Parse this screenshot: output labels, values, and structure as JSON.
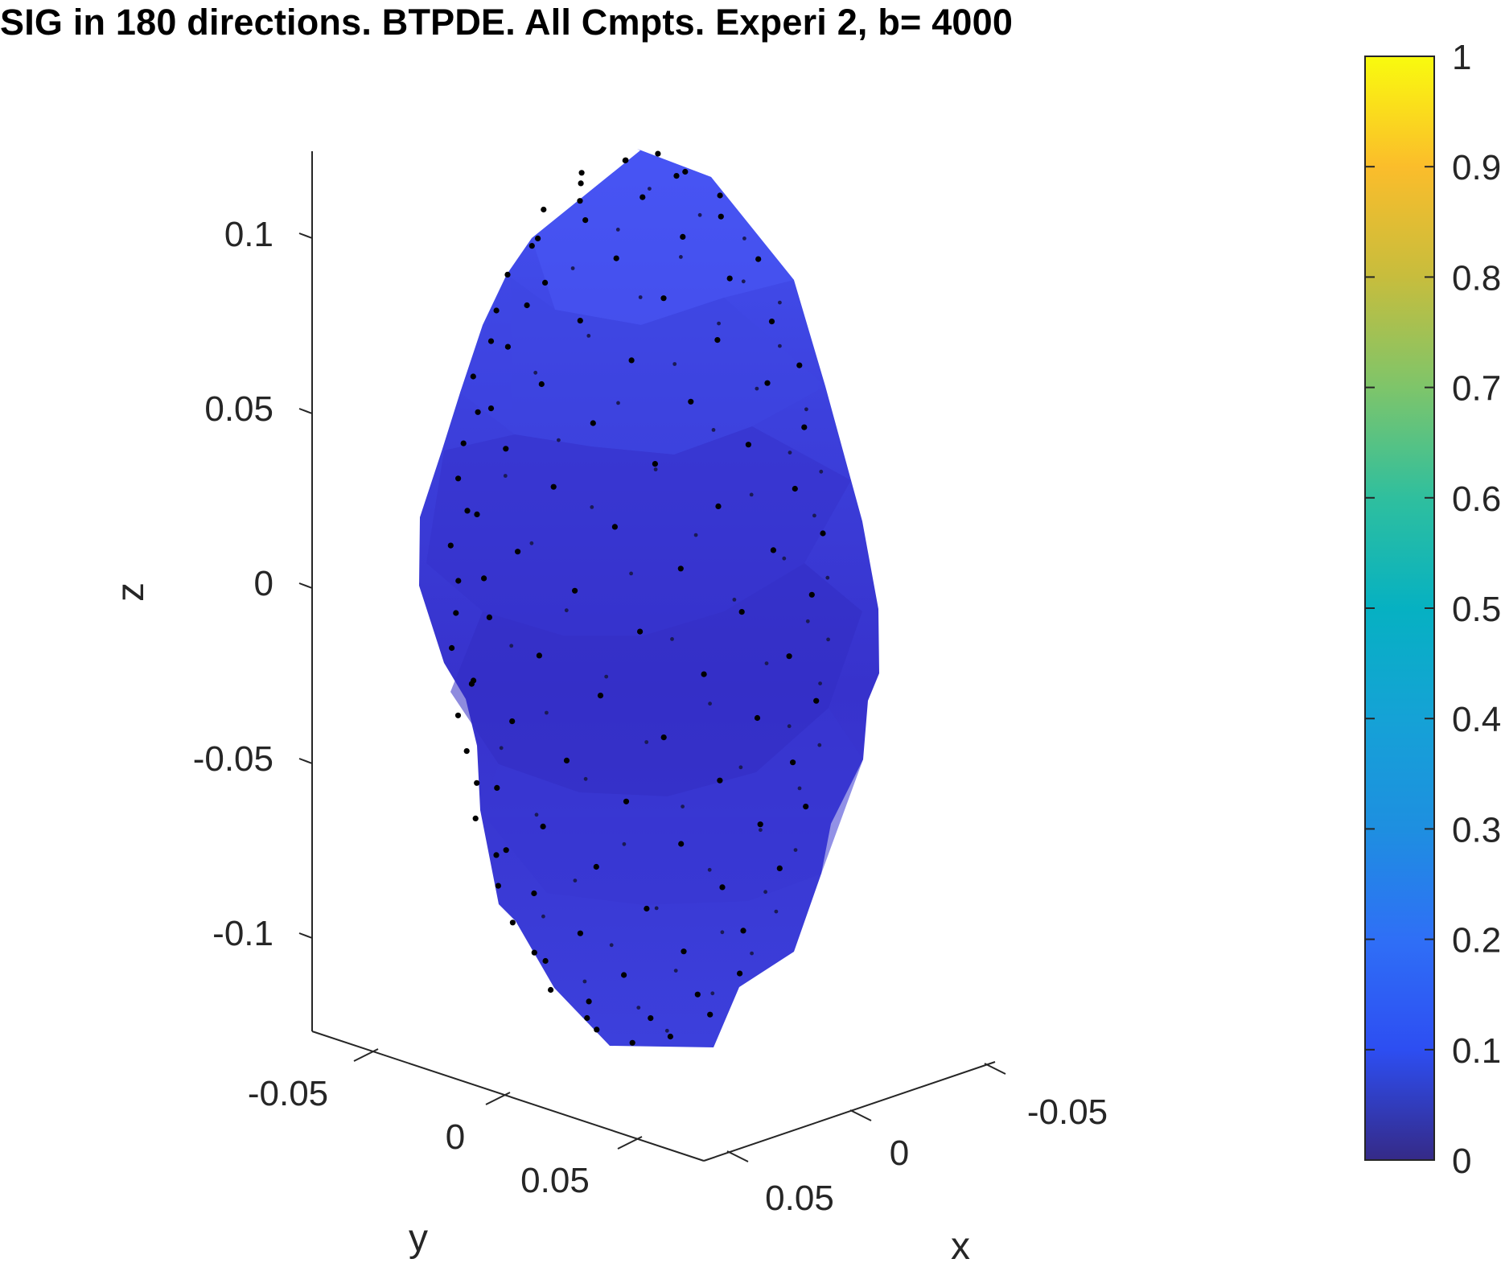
{
  "chart_data": {
    "type": "surface3d",
    "title": "SIG in 180 directions. BTPDE. All Cmpts. Experi 2, b= 4000",
    "xlabel": "x",
    "ylabel": "y",
    "zlabel": "z",
    "x_ticks": [
      "-0.05",
      "0",
      "0.05"
    ],
    "y_ticks": [
      "-0.05",
      "0",
      "0.05"
    ],
    "z_ticks": [
      "0.1",
      "0.05",
      "0",
      "-0.05",
      "-0.1"
    ],
    "zlim": [
      -0.13,
      0.12
    ],
    "n_directions": 180,
    "colorbar": {
      "ticks": [
        "1",
        "0.9",
        "0.8",
        "0.7",
        "0.6",
        "0.5",
        "0.4",
        "0.3",
        "0.2",
        "0.1",
        "0"
      ],
      "range": [
        0,
        1
      ],
      "colormap": "parula"
    },
    "surface_color_range": [
      0.05,
      0.15
    ],
    "colors": {
      "surface_top": "#4250f0",
      "surface_mid": "#3a3cd8",
      "surface_dark": "#3530c8",
      "point": "#000000",
      "axis": "#262626"
    }
  }
}
